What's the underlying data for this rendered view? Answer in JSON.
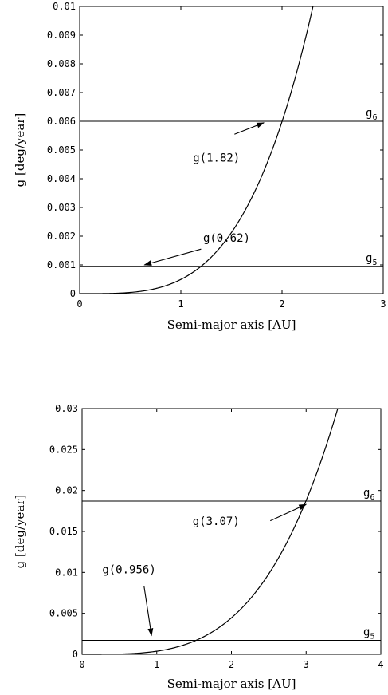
{
  "chart_data": [
    {
      "type": "line",
      "xlabel": "Semi-major axis [AU]",
      "ylabel": "g [deg/year]",
      "xlim": [
        0,
        3
      ],
      "ylim": [
        0,
        0.01
      ],
      "x_ticks": [
        "0",
        "1",
        "2",
        "3"
      ],
      "y_ticks": [
        "0",
        "0.001",
        "0.002",
        "0.003",
        "0.004",
        "0.005",
        "0.006",
        "0.007",
        "0.008",
        "0.009",
        "0.01"
      ],
      "curve": {
        "coefficient": 0.000494,
        "exponent": 3.6
      },
      "hlines": [
        {
          "label": "g",
          "sub": "6",
          "value": 0.006
        },
        {
          "label": "g",
          "sub": "5",
          "value": 0.00095
        }
      ],
      "annotations": [
        {
          "text": "g(1.82)",
          "text_x": 1.12,
          "text_y": 0.0046,
          "arrow_from": [
            1.53,
            0.00555
          ],
          "arrow_to": [
            1.82,
            0.00595
          ]
        },
        {
          "text": "g(0.62)",
          "text_x": 1.22,
          "text_y": 0.0018,
          "arrow_from": [
            1.2,
            0.00155
          ],
          "arrow_to": [
            0.64,
            0.001
          ]
        }
      ]
    },
    {
      "type": "line",
      "xlabel": "Semi-major axis [AU]",
      "ylabel": "g [deg/year]",
      "xlim": [
        0,
        4
      ],
      "ylim": [
        0,
        0.03
      ],
      "x_ticks": [
        "0",
        "1",
        "2",
        "3",
        "4"
      ],
      "y_ticks": [
        "0",
        "0.005",
        "0.01",
        "0.015",
        "0.02",
        "0.025",
        "0.03"
      ],
      "curve": {
        "coefficient": 0.00038,
        "exponent": 3.55
      },
      "hlines": [
        {
          "label": "g",
          "sub": "6",
          "value": 0.0187
        },
        {
          "label": "g",
          "sub": "5",
          "value": 0.0017
        }
      ],
      "annotations": [
        {
          "text": "g(3.07)",
          "text_x": 1.48,
          "text_y": 0.0158,
          "arrow_from": [
            2.52,
            0.0163
          ],
          "arrow_to": [
            3.0,
            0.0183
          ]
        },
        {
          "text": "g(0.956)",
          "text_x": 0.27,
          "text_y": 0.0099,
          "arrow_from": [
            0.83,
            0.0083
          ],
          "arrow_to": [
            0.93,
            0.0023
          ]
        }
      ]
    }
  ]
}
